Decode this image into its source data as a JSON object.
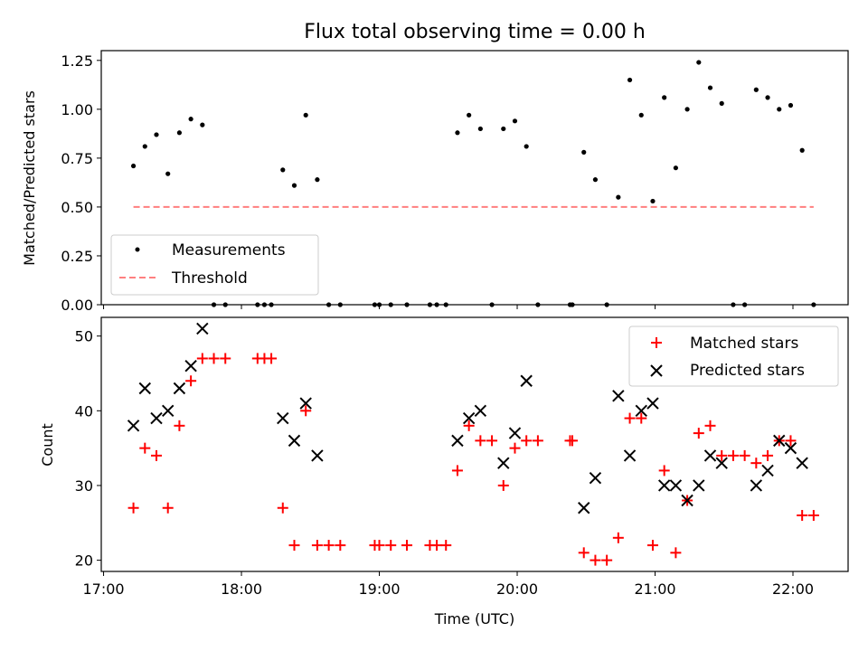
{
  "chart_data": [
    {
      "type": "scatter",
      "title": "Flux total observing time = 0.00 h",
      "xlabel": "",
      "ylabel": "Matched/Predicted stars",
      "xlim": [
        "16:59",
        "22:24"
      ],
      "ylim": [
        0,
        1.3
      ],
      "xticks": [
        "17:00",
        "18:00",
        "19:00",
        "20:00",
        "21:00",
        "22:00"
      ],
      "yticks": [
        "0.00",
        "0.25",
        "0.50",
        "0.75",
        "1.00",
        "1.25"
      ],
      "legend_position": "lower-left",
      "series": [
        {
          "name": "Measurements",
          "color": "#000000",
          "marker": "dot",
          "points": [
            [
              "17:13",
              0.71
            ],
            [
              "17:18",
              0.81
            ],
            [
              "17:23",
              0.87
            ],
            [
              "17:28",
              0.67
            ],
            [
              "17:33",
              0.88
            ],
            [
              "17:38",
              0.95
            ],
            [
              "17:43",
              0.92
            ],
            [
              "17:48",
              0
            ],
            [
              "17:53",
              0
            ],
            [
              "18:07",
              0
            ],
            [
              "18:10",
              0
            ],
            [
              "18:13",
              0
            ],
            [
              "18:18",
              0.69
            ],
            [
              "18:23",
              0.61
            ],
            [
              "18:28",
              0.97
            ],
            [
              "18:33",
              0.64
            ],
            [
              "18:38",
              0
            ],
            [
              "18:43",
              0
            ],
            [
              "18:58",
              0
            ],
            [
              "19:00",
              0
            ],
            [
              "19:05",
              0
            ],
            [
              "19:12",
              0
            ],
            [
              "19:22",
              0
            ],
            [
              "19:25",
              0
            ],
            [
              "19:29",
              0
            ],
            [
              "19:34",
              0.88
            ],
            [
              "19:39",
              0.97
            ],
            [
              "19:44",
              0.9
            ],
            [
              "19:49",
              0
            ],
            [
              "19:54",
              0.9
            ],
            [
              "19:59",
              0.94
            ],
            [
              "20:04",
              0.81
            ],
            [
              "20:09",
              0
            ],
            [
              "20:23",
              0
            ],
            [
              "20:24",
              0
            ],
            [
              "20:29",
              0.78
            ],
            [
              "20:34",
              0.64
            ],
            [
              "20:39",
              0
            ],
            [
              "20:44",
              0.55
            ],
            [
              "20:49",
              1.15
            ],
            [
              "20:54",
              0.97
            ],
            [
              "20:59",
              0.53
            ],
            [
              "21:04",
              1.06
            ],
            [
              "21:09",
              0.7
            ],
            [
              "21:14",
              1.0
            ],
            [
              "21:19",
              1.24
            ],
            [
              "21:24",
              1.11
            ],
            [
              "21:29",
              1.03
            ],
            [
              "21:34",
              0
            ],
            [
              "21:39",
              0
            ],
            [
              "21:44",
              1.1
            ],
            [
              "21:49",
              1.06
            ],
            [
              "21:54",
              1.0
            ],
            [
              "21:59",
              1.02
            ],
            [
              "22:04",
              0.79
            ],
            [
              "22:09",
              0
            ]
          ]
        },
        {
          "name": "Threshold",
          "color": "#ff7f7f",
          "style": "dashed",
          "x": [
            "17:13",
            "22:09"
          ],
          "y": [
            0.5,
            0.5
          ]
        }
      ]
    },
    {
      "type": "scatter",
      "title": "",
      "xlabel": "Time (UTC)",
      "ylabel": "Count",
      "xlim": [
        "16:59",
        "22:24"
      ],
      "ylim": [
        18.5,
        52.5
      ],
      "xticks": [
        "17:00",
        "18:00",
        "19:00",
        "20:00",
        "21:00",
        "22:00"
      ],
      "yticks": [
        "20",
        "30",
        "40",
        "50"
      ],
      "legend_position": "top-right",
      "series": [
        {
          "name": "Matched stars",
          "color": "#ff0000",
          "marker": "plus",
          "points": [
            [
              "17:13",
              27
            ],
            [
              "17:18",
              35
            ],
            [
              "17:23",
              34
            ],
            [
              "17:28",
              27
            ],
            [
              "17:33",
              38
            ],
            [
              "17:38",
              44
            ],
            [
              "17:43",
              47
            ],
            [
              "17:48",
              47
            ],
            [
              "17:53",
              47
            ],
            [
              "18:07",
              47
            ],
            [
              "18:10",
              47
            ],
            [
              "18:13",
              47
            ],
            [
              "18:18",
              27
            ],
            [
              "18:23",
              22
            ],
            [
              "18:28",
              40
            ],
            [
              "18:33",
              22
            ],
            [
              "18:38",
              22
            ],
            [
              "18:43",
              22
            ],
            [
              "18:58",
              22
            ],
            [
              "19:00",
              22
            ],
            [
              "19:05",
              22
            ],
            [
              "19:12",
              22
            ],
            [
              "19:22",
              22
            ],
            [
              "19:25",
              22
            ],
            [
              "19:29",
              22
            ],
            [
              "19:34",
              32
            ],
            [
              "19:39",
              38
            ],
            [
              "19:44",
              36
            ],
            [
              "19:49",
              36
            ],
            [
              "19:54",
              30
            ],
            [
              "19:59",
              35
            ],
            [
              "20:04",
              36
            ],
            [
              "20:09",
              36
            ],
            [
              "20:23",
              36
            ],
            [
              "20:24",
              36
            ],
            [
              "20:29",
              21
            ],
            [
              "20:34",
              20
            ],
            [
              "20:39",
              20
            ],
            [
              "20:44",
              23
            ],
            [
              "20:49",
              39
            ],
            [
              "20:54",
              39
            ],
            [
              "20:59",
              22
            ],
            [
              "21:04",
              32
            ],
            [
              "21:09",
              21
            ],
            [
              "21:14",
              28
            ],
            [
              "21:19",
              37
            ],
            [
              "21:24",
              38
            ],
            [
              "21:29",
              34
            ],
            [
              "21:34",
              34
            ],
            [
              "21:39",
              34
            ],
            [
              "21:44",
              33
            ],
            [
              "21:49",
              34
            ],
            [
              "21:54",
              36
            ],
            [
              "21:59",
              36
            ],
            [
              "22:04",
              26
            ],
            [
              "22:09",
              26
            ]
          ]
        },
        {
          "name": "Predicted stars",
          "color": "#000000",
          "marker": "x",
          "points": [
            [
              "17:13",
              38
            ],
            [
              "17:18",
              43
            ],
            [
              "17:23",
              39
            ],
            [
              "17:28",
              40
            ],
            [
              "17:33",
              43
            ],
            [
              "17:38",
              46
            ],
            [
              "17:43",
              51
            ],
            [
              "18:18",
              39
            ],
            [
              "18:23",
              36
            ],
            [
              "18:28",
              41
            ],
            [
              "18:33",
              34
            ],
            [
              "19:34",
              36
            ],
            [
              "19:39",
              39
            ],
            [
              "19:44",
              40
            ],
            [
              "19:54",
              33
            ],
            [
              "19:59",
              37
            ],
            [
              "20:04",
              44
            ],
            [
              "20:29",
              27
            ],
            [
              "20:34",
              31
            ],
            [
              "20:44",
              42
            ],
            [
              "20:49",
              34
            ],
            [
              "20:54",
              40
            ],
            [
              "20:59",
              41
            ],
            [
              "21:04",
              30
            ],
            [
              "21:09",
              30
            ],
            [
              "21:14",
              28
            ],
            [
              "21:19",
              30
            ],
            [
              "21:24",
              34
            ],
            [
              "21:29",
              33
            ],
            [
              "21:44",
              30
            ],
            [
              "21:49",
              32
            ],
            [
              "21:54",
              36
            ],
            [
              "21:59",
              35
            ],
            [
              "22:04",
              33
            ]
          ]
        }
      ]
    }
  ]
}
